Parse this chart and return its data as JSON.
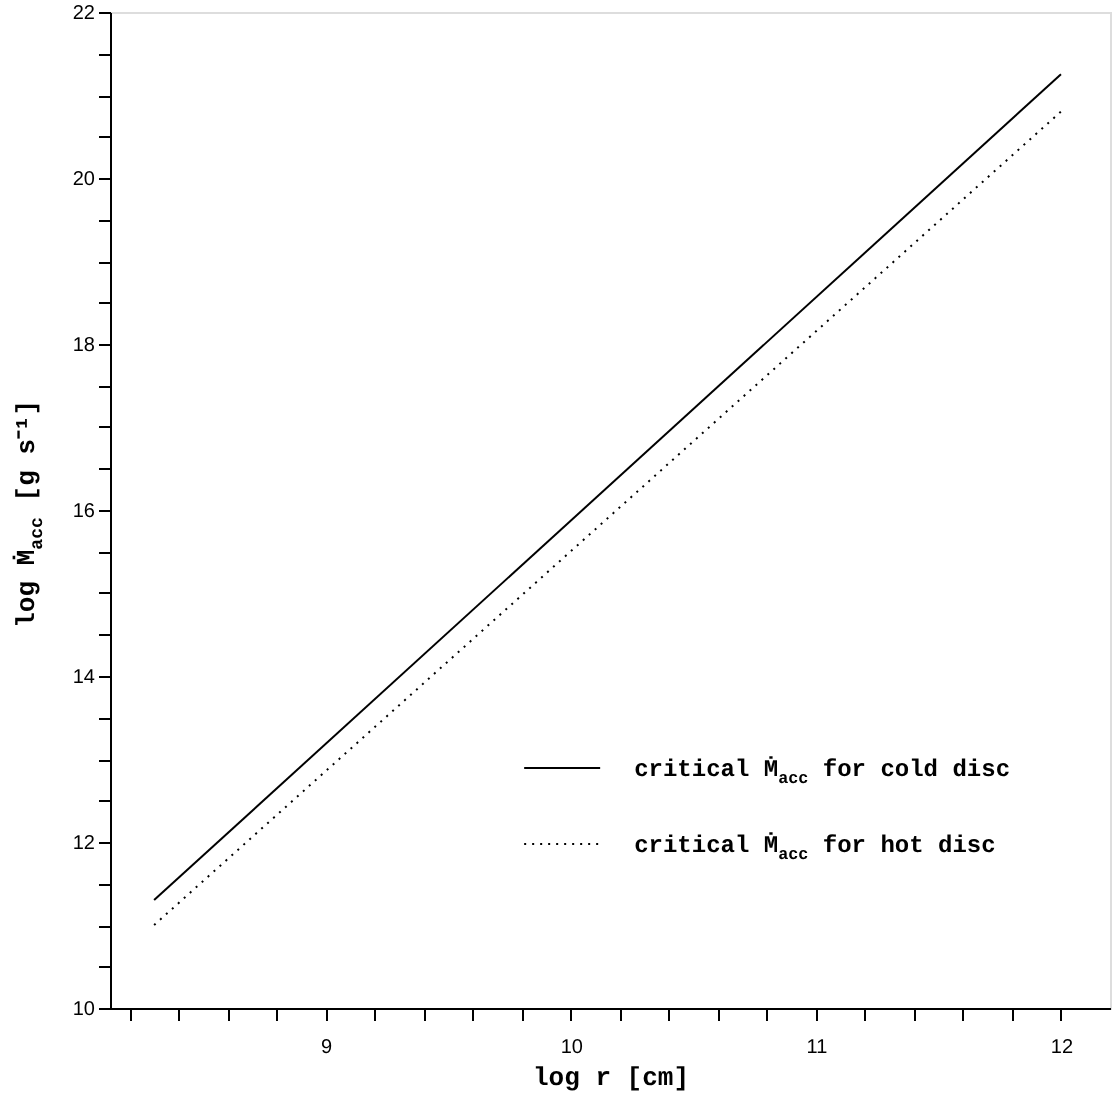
{
  "chart_data": {
    "type": "line",
    "xlabel": "log r [cm]",
    "ylabel": "log Ṁ$_{acc}$ [g s⁻¹]",
    "x": [
      8.3,
      12.0
    ],
    "series": [
      {
        "name": "critical Ṁ$_{acc}$ for cold disc",
        "color": "#000000",
        "line_style": "solid",
        "values": [
          11.3,
          21.25
        ]
      },
      {
        "name": "critical Ṁ$_{acc}$ for hot disc",
        "color": "#000000",
        "line_style": "dotted",
        "values": [
          11.0,
          20.8
        ]
      }
    ],
    "xlim": [
      8.12,
      12.2
    ],
    "ylim": [
      10,
      22
    ],
    "xticks": [
      {
        "value": 8.2,
        "label": null
      },
      {
        "value": 8.4,
        "label": null
      },
      {
        "value": 8.6,
        "label": null
      },
      {
        "value": 8.8,
        "label": null
      },
      9,
      {
        "value": 9.2,
        "label": null
      },
      {
        "value": 9.4,
        "label": null
      },
      {
        "value": 9.6,
        "label": null
      },
      {
        "value": 9.8,
        "label": null
      },
      10,
      {
        "value": 10.2,
        "label": null
      },
      {
        "value": 10.4,
        "label": null
      },
      {
        "value": 10.6,
        "label": null
      },
      {
        "value": 10.8,
        "label": null
      },
      11,
      {
        "value": 11.2,
        "label": null
      },
      {
        "value": 11.4,
        "label": null
      },
      {
        "value": 11.6,
        "label": null
      },
      {
        "value": 11.8,
        "label": null
      },
      12
    ],
    "yticks": [
      10,
      {
        "value": 10.5,
        "label": null
      },
      {
        "value": 11,
        "label": null
      },
      {
        "value": 11.5,
        "label": null
      },
      12,
      {
        "value": 12.5,
        "label": null
      },
      {
        "value": 13,
        "label": null
      },
      {
        "value": 13.5,
        "label": null
      },
      14,
      {
        "value": 14.5,
        "label": null
      },
      {
        "value": 15,
        "label": null
      },
      {
        "value": 15.5,
        "label": null
      },
      16,
      {
        "value": 16.5,
        "label": null
      },
      {
        "value": 17,
        "label": null
      },
      {
        "value": 17.5,
        "label": null
      },
      18,
      {
        "value": 18.5,
        "label": null
      },
      {
        "value": 19,
        "label": null
      },
      {
        "value": 19.5,
        "label": null
      },
      20,
      {
        "value": 20.5,
        "label": null
      },
      {
        "value": 21,
        "label": null
      },
      {
        "value": 21.5,
        "label": null
      },
      22
    ],
    "grid": false,
    "legend": "bottom right"
  }
}
